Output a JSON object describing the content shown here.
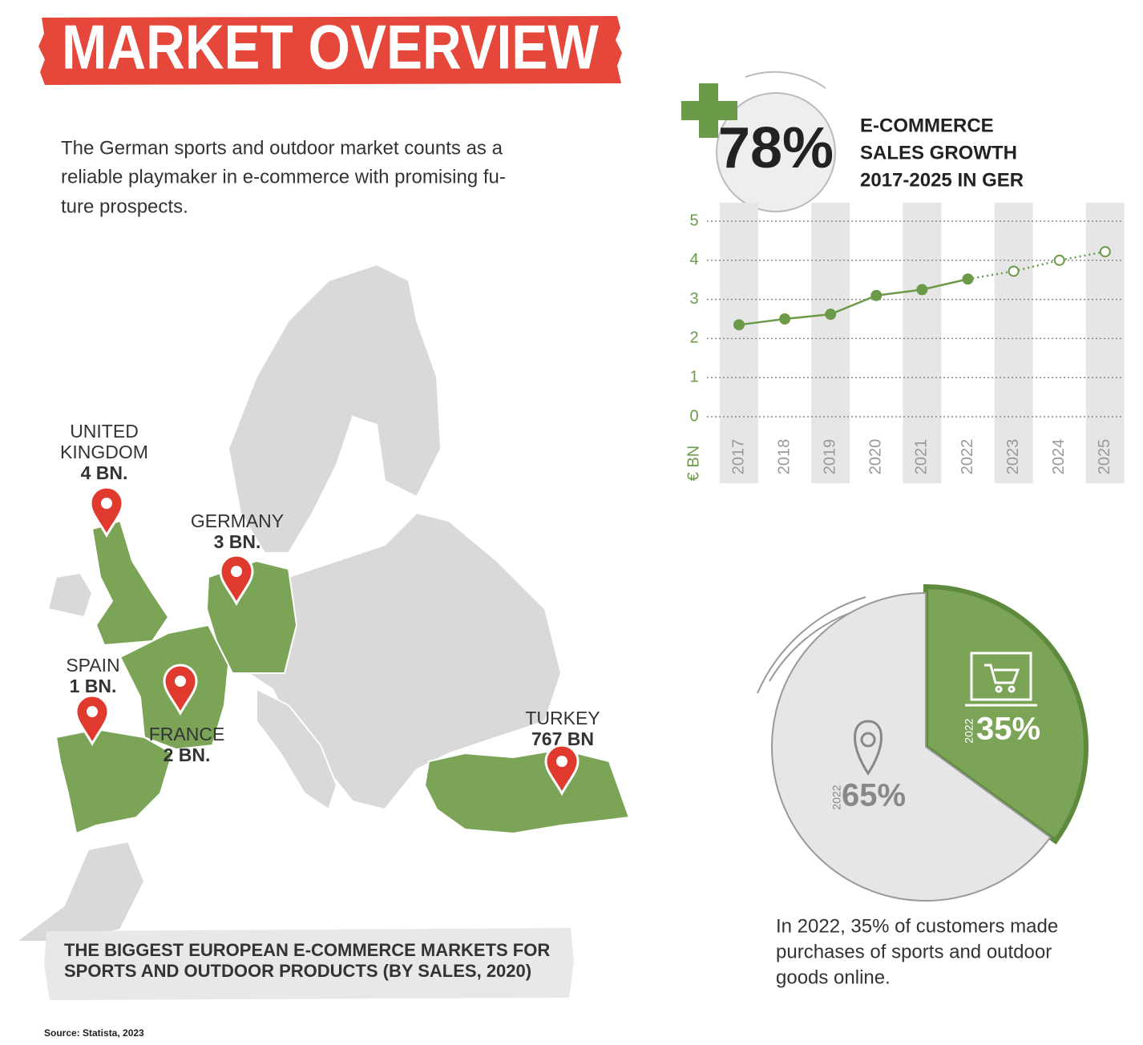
{
  "header": {
    "title": "MARKET OVERVIEW"
  },
  "intro": [
    "The German sports and outdoor market counts as a",
    "reliable playmaker in e-commerce with promising fu-",
    "ture prospects."
  ],
  "map": {
    "title": [
      "THE BIGGEST EUROPEAN E-COMMERCE MARKETS  FOR",
      "SPORTS AND OUTDOOR PRODUCTS (BY SALES, 2020)"
    ],
    "markets": [
      {
        "name": [
          "UNITED",
          "KINGDOM"
        ],
        "value": "4 BN."
      },
      {
        "name": [
          "GERMANY"
        ],
        "value": "3 BN."
      },
      {
        "name": [
          "SPAIN"
        ],
        "value": "1 BN."
      },
      {
        "name": [
          "FRANCE"
        ],
        "value": "2 BN."
      },
      {
        "name": [
          "TURKEY"
        ],
        "value": "767 BN"
      }
    ]
  },
  "source": "Source: Statista, 2023",
  "chart_data": [
    {
      "type": "line",
      "badge": "78%",
      "title": [
        "E-COMMERCE",
        "SALES GROWTH",
        "2017-2025 IN GER"
      ],
      "y_label": "€ BN",
      "categories": [
        "2017",
        "2018",
        "2019",
        "2020",
        "2021",
        "2022",
        "2023",
        "2024",
        "2025"
      ],
      "series": [
        {
          "color": "#6b9a49",
          "style": "solid",
          "values": [
            2.35,
            2.5,
            2.62,
            3.1,
            3.25,
            3.52,
            null,
            null,
            null
          ]
        },
        {
          "color": "#6b9a49",
          "style": "dotted",
          "values": [
            null,
            null,
            null,
            null,
            null,
            null,
            3.72,
            4.0,
            4.22
          ]
        }
      ],
      "ylim": [
        0,
        5
      ],
      "yticks": [
        0,
        1,
        2,
        3,
        4,
        5
      ],
      "grid": true
    },
    {
      "type": "pie",
      "values": [
        35,
        65
      ],
      "value_labels": [
        "35%",
        "65%"
      ],
      "sublabels": [
        "2022",
        "2022"
      ],
      "colors": [
        "#7ba456",
        "#e6e6e6"
      ],
      "caption": [
        "In 2022, 35% of customers made",
        "purchases of sports and outdoor",
        "goods online."
      ]
    }
  ]
}
